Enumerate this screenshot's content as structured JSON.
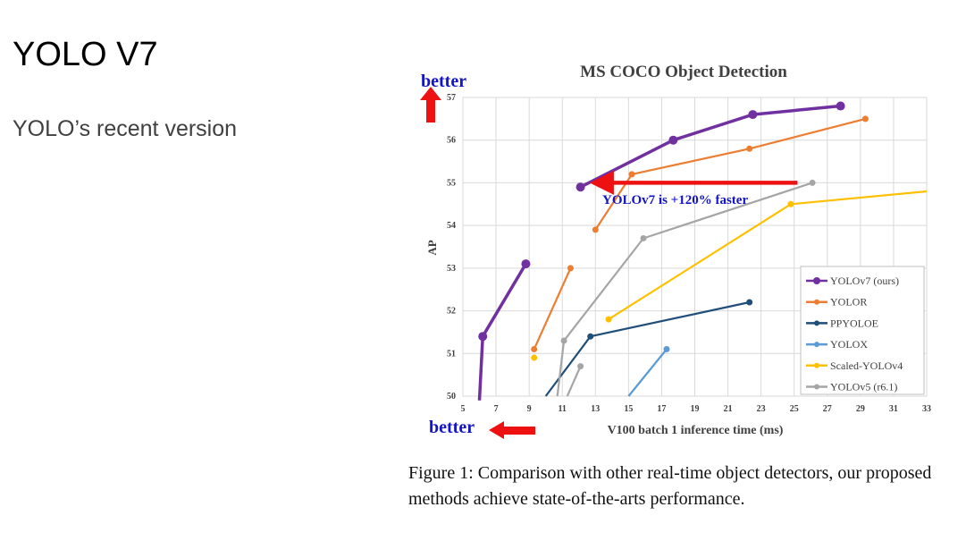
{
  "slide": {
    "title": "YOLO V7",
    "subtitle": "YOLO’s recent version"
  },
  "caption": "Figure 1:  Comparison with other real-time object detectors, our proposed methods achieve state-of-the-arts performance.",
  "chart_data": {
    "type": "line",
    "title": "MS COCO Object Detection",
    "xlabel": "V100 batch 1 inference time (ms)",
    "ylabel": "AP",
    "xlim": [
      5,
      33
    ],
    "ylim": [
      50,
      57
    ],
    "xticks": [
      5,
      7,
      9,
      11,
      13,
      15,
      17,
      19,
      21,
      23,
      25,
      27,
      29,
      31,
      33
    ],
    "yticks": [
      50,
      51,
      52,
      53,
      54,
      55,
      56,
      57
    ],
    "grid": true,
    "legend_position": "bottom-right",
    "annotations": {
      "better_y": "better",
      "better_x": "better",
      "speedup": "YOLOv7 is +120% faster"
    },
    "series": [
      {
        "name": "YOLOv7 (ours)",
        "color": "#7030a0",
        "marker_size": 5,
        "line_width": 3.5,
        "segments": [
          [
            [
              6.0,
              49.9
            ],
            [
              6.2,
              51.4
            ],
            [
              8.8,
              53.1
            ]
          ],
          [
            [
              12.1,
              54.9
            ],
            [
              17.7,
              56.0
            ],
            [
              22.5,
              56.6
            ],
            [
              27.8,
              56.8
            ]
          ]
        ]
      },
      {
        "name": "YOLOR",
        "color": "#ed7d31",
        "marker_size": 3.5,
        "line_width": 2.2,
        "segments": [
          [
            [
              9.3,
              51.1
            ],
            [
              11.5,
              53.0
            ]
          ],
          [
            [
              13.0,
              53.9
            ],
            [
              15.2,
              55.2
            ],
            [
              22.3,
              55.8
            ],
            [
              29.3,
              56.5
            ]
          ]
        ]
      },
      {
        "name": "PPYOLOE",
        "color": "#1f4e79",
        "marker_size": 3.5,
        "line_width": 2.2,
        "segments": [
          [
            [
              10.0,
              50.0
            ],
            [
              12.7,
              51.4
            ],
            [
              22.3,
              52.2
            ]
          ]
        ]
      },
      {
        "name": "YOLOX",
        "color": "#5b9bd5",
        "marker_size": 3.5,
        "line_width": 2.2,
        "segments": [
          [
            [
              15.0,
              50.0
            ],
            [
              17.3,
              51.1
            ]
          ]
        ]
      },
      {
        "name": "Scaled-YOLOv4",
        "color": "#ffc000",
        "marker_size": 3.5,
        "line_width": 2.2,
        "segments": [
          [
            [
              9.3,
              50.9
            ]
          ],
          [
            [
              13.8,
              51.8
            ],
            [
              24.8,
              54.5
            ],
            [
              33.0,
              54.8
            ]
          ]
        ]
      },
      {
        "name": "YOLOv5 (r6.1)",
        "color": "#a5a5a5",
        "marker_size": 3.5,
        "line_width": 2.2,
        "segments": [
          [
            [
              11.3,
              50.0
            ],
            [
              12.1,
              50.7
            ]
          ],
          [
            [
              10.7,
              50.0
            ],
            [
              11.1,
              51.3
            ],
            [
              15.9,
              53.7
            ],
            [
              26.1,
              55.0
            ]
          ]
        ]
      }
    ]
  }
}
